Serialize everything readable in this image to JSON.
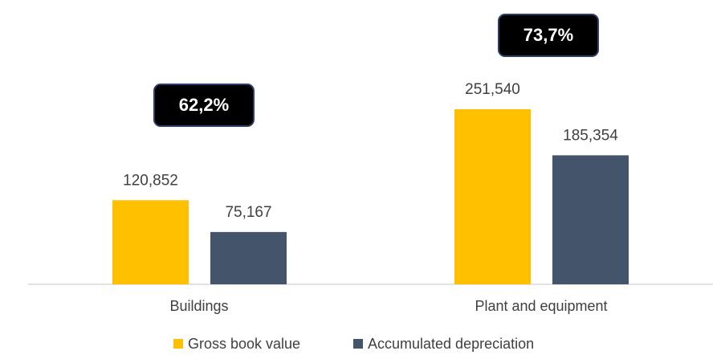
{
  "chart_data": {
    "type": "bar",
    "categories": [
      "Buildings",
      "Plant and equipment"
    ],
    "series": [
      {
        "name": "Gross book value",
        "color": "#FFC000",
        "values": [
          120852,
          251540
        ],
        "value_labels": [
          "120,852",
          "251,540"
        ]
      },
      {
        "name": "Accumulated depreciation",
        "color": "#44546A",
        "values": [
          75167,
          185354
        ],
        "value_labels": [
          "75,167",
          "185,354"
        ]
      }
    ],
    "annotations": [
      "62,2%",
      "73,7%"
    ]
  }
}
